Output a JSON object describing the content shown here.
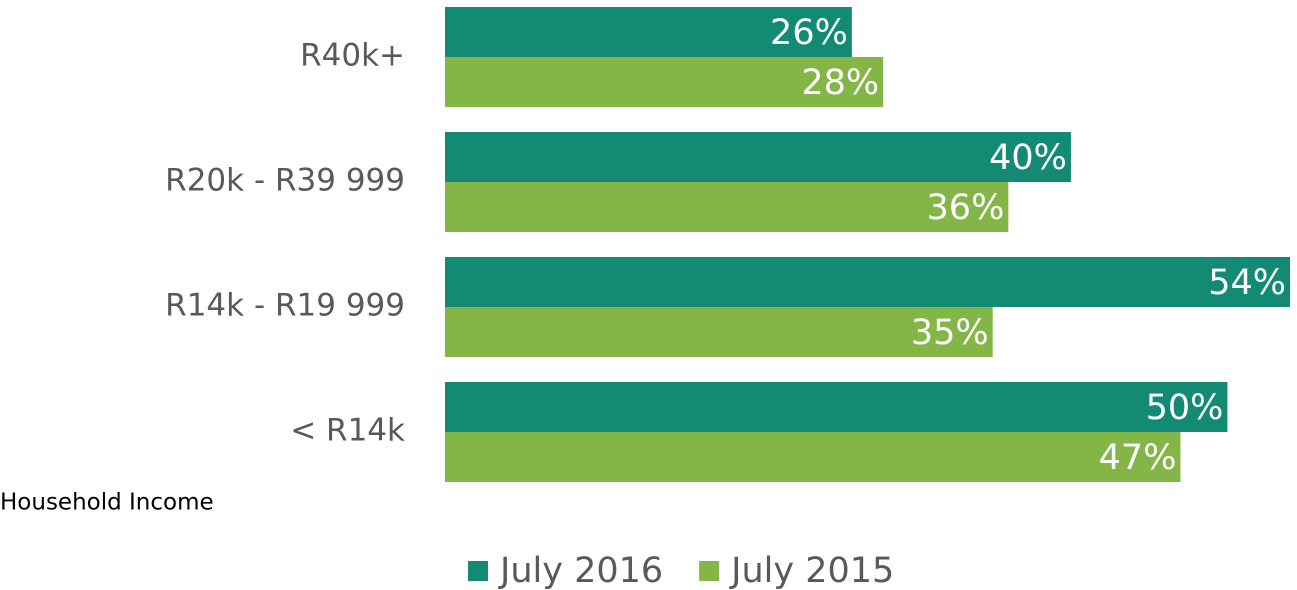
{
  "chart_data": {
    "type": "bar",
    "orientation": "horizontal",
    "y_label": "Household Income",
    "categories": [
      "R40k+",
      "R20k - R39 999",
      "R14k - R19 999",
      "< R14k"
    ],
    "series": [
      {
        "name": "July 2016",
        "color": "#138a74",
        "values": [
          26,
          40,
          54,
          50
        ],
        "value_labels": [
          "26%",
          "40%",
          "54%",
          "50%"
        ]
      },
      {
        "name": "July 2015",
        "color": "#84b547",
        "values": [
          28,
          36,
          35,
          47
        ],
        "value_labels": [
          "28%",
          "36%",
          "35%",
          "47%"
        ]
      }
    ],
    "legend": "bottom"
  }
}
